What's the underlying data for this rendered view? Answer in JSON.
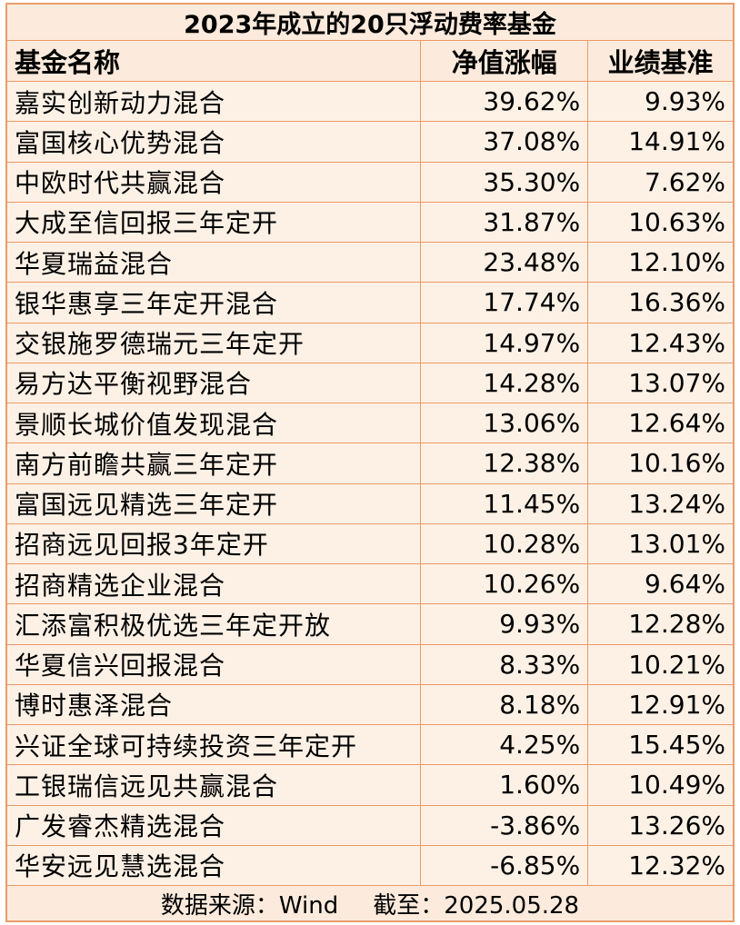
{
  "title": "2023年成立的20只浮动费率基金",
  "headers": {
    "name": "基金名称",
    "nav_change": "净值涨幅",
    "benchmark": "业绩基准"
  },
  "rows": [
    {
      "name": "嘉实创新动力混合",
      "nav_change": "39.62%",
      "benchmark": "9.93%"
    },
    {
      "name": "富国核心优势混合",
      "nav_change": "37.08%",
      "benchmark": "14.91%"
    },
    {
      "name": "中欧时代共赢混合",
      "nav_change": "35.30%",
      "benchmark": "7.62%"
    },
    {
      "name": "大成至信回报三年定开",
      "nav_change": "31.87%",
      "benchmark": "10.63%"
    },
    {
      "name": "华夏瑞益混合",
      "nav_change": "23.48%",
      "benchmark": "12.10%"
    },
    {
      "name": "银华惠享三年定开混合",
      "nav_change": "17.74%",
      "benchmark": "16.36%"
    },
    {
      "name": "交银施罗德瑞元三年定开",
      "nav_change": "14.97%",
      "benchmark": "12.43%"
    },
    {
      "name": "易方达平衡视野混合",
      "nav_change": "14.28%",
      "benchmark": "13.07%"
    },
    {
      "name": "景顺长城价值发现混合",
      "nav_change": "13.06%",
      "benchmark": "12.64%"
    },
    {
      "name": "南方前瞻共赢三年定开",
      "nav_change": "12.38%",
      "benchmark": "10.16%"
    },
    {
      "name": "富国远见精选三年定开",
      "nav_change": "11.45%",
      "benchmark": "13.24%"
    },
    {
      "name": "招商远见回报3年定开",
      "nav_change": "10.28%",
      "benchmark": "13.01%"
    },
    {
      "name": "招商精选企业混合",
      "nav_change": "10.26%",
      "benchmark": "9.64%"
    },
    {
      "name": "汇添富积极优选三年定开放",
      "nav_change": "9.93%",
      "benchmark": "12.28%"
    },
    {
      "name": "华夏信兴回报混合",
      "nav_change": "8.33%",
      "benchmark": "10.21%"
    },
    {
      "name": "博时惠泽混合",
      "nav_change": "8.18%",
      "benchmark": "12.91%"
    },
    {
      "name": "兴证全球可持续投资三年定开",
      "nav_change": "4.25%",
      "benchmark": "15.45%"
    },
    {
      "name": "工银瑞信远见共赢混合",
      "nav_change": "1.60%",
      "benchmark": "10.49%"
    },
    {
      "name": "广发睿杰精选混合",
      "nav_change": "-3.86%",
      "benchmark": "13.26%"
    },
    {
      "name": "华安远见慧选混合",
      "nav_change": "-6.85%",
      "benchmark": "12.32%"
    }
  ],
  "footer": {
    "source": "数据来源：Wind",
    "as_of": "截至：2025.05.28"
  },
  "colors": {
    "border": "#ec9a66",
    "background": "#fdf1e6"
  }
}
